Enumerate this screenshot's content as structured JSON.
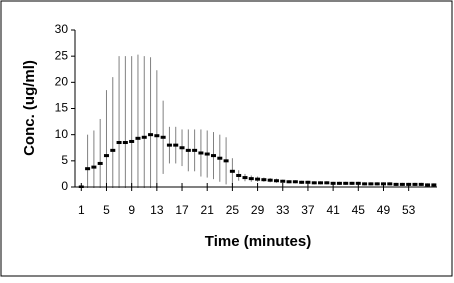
{
  "chart_data": {
    "type": "errorbar",
    "x_label": "Time (minutes)",
    "y_label": "Conc. (ug/ml)",
    "x": [
      1,
      2,
      3,
      4,
      5,
      6,
      7,
      8,
      9,
      10,
      11,
      12,
      13,
      14,
      15,
      16,
      17,
      18,
      19,
      20,
      21,
      22,
      23,
      24,
      25,
      26,
      27,
      28,
      29,
      30,
      31,
      32,
      33,
      34,
      35,
      36,
      37,
      38,
      39,
      40,
      41,
      42,
      43,
      44,
      45,
      46,
      47,
      48,
      49,
      50,
      51,
      52,
      53,
      54,
      55,
      56,
      57
    ],
    "values": [
      0,
      3.5,
      3.8,
      4.5,
      6,
      7,
      8.5,
      8.5,
      8.7,
      9.3,
      9.5,
      10,
      9.8,
      9.5,
      8,
      8,
      7.5,
      7,
      7,
      6.5,
      6.3,
      6,
      5.5,
      5,
      3,
      2.2,
      1.8,
      1.6,
      1.5,
      1.4,
      1.3,
      1.2,
      1.1,
      1,
      1,
      0.9,
      0.9,
      0.8,
      0.8,
      0.8,
      0.7,
      0.7,
      0.7,
      0.7,
      0.7,
      0.6,
      0.6,
      0.6,
      0.6,
      0.6,
      0.5,
      0.5,
      0.5,
      0.5,
      0.5,
      0.4,
      0.4
    ],
    "errors": [
      0,
      6.5,
      7,
      8.5,
      12.5,
      14,
      16.5,
      16.5,
      16.3,
      16,
      15.5,
      14.8,
      12.5,
      7,
      3.5,
      3.5,
      3.5,
      4,
      4,
      4.5,
      4.5,
      4.5,
      4.5,
      4.5,
      2.5,
      1,
      0.7,
      0.6,
      0.5,
      0.4,
      0.4,
      0.4,
      0.3,
      0.3,
      0.3,
      0.3,
      0.3,
      0.3,
      0.3,
      0.3,
      0.3,
      0.3,
      0.3,
      0.3,
      0.3,
      0.3,
      0.3,
      0.3,
      0.3,
      0.3,
      0.3,
      0.3,
      0.3,
      0.3,
      0.3,
      0.3,
      0.3
    ],
    "color": "#000000",
    "error_color": "#808080",
    "xlim": [
      0,
      57.5
    ],
    "xticks": [
      1,
      5,
      9,
      13,
      17,
      21,
      25,
      29,
      33,
      37,
      41,
      45,
      49,
      53
    ],
    "ylim": [
      0,
      30
    ],
    "yticks": [
      0,
      5,
      10,
      15,
      20,
      25,
      30
    ]
  }
}
